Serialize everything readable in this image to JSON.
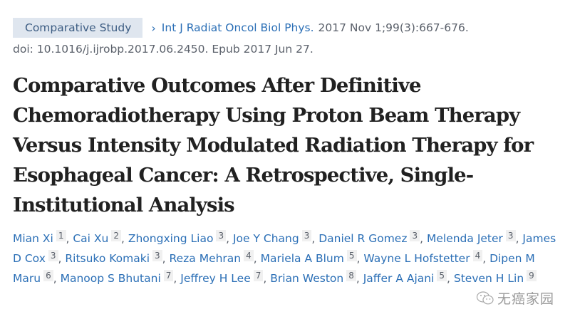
{
  "citation": {
    "publication_type": "Comparative Study",
    "journal": "Int J Radiat Oncol Biol Phys.",
    "details": "2017 Nov 1;99(3):667-676.",
    "doi_line": "doi: 10.1016/j.ijrobp.2017.06.2450. Epub 2017 Jun 27."
  },
  "title_lines": [
    "Comparative Outcomes After Definitive",
    "Chemoradiotherapy Using Proton Beam Therapy",
    "Versus Intensity Modulated Radiation Therapy for",
    "Esophageal Cancer: A Retrospective, Single-",
    "Institutional Analysis"
  ],
  "authors": [
    {
      "name": "Mian Xi",
      "aff": "1"
    },
    {
      "name": "Cai Xu",
      "aff": "2"
    },
    {
      "name": "Zhongxing Liao",
      "aff": "3"
    },
    {
      "name": "Joe Y Chang",
      "aff": "3"
    },
    {
      "name": "Daniel R Gomez",
      "aff": "3"
    },
    {
      "name": "Melenda Jeter",
      "aff": "3"
    },
    {
      "name": "James D Cox",
      "aff": "3"
    },
    {
      "name": "Ritsuko Komaki",
      "aff": "3"
    },
    {
      "name": "Reza Mehran",
      "aff": "4"
    },
    {
      "name": "Mariela A Blum",
      "aff": "5"
    },
    {
      "name": "Wayne L Hofstetter",
      "aff": "4"
    },
    {
      "name": "Dipen M Maru",
      "aff": "6"
    },
    {
      "name": "Manoop S Bhutani",
      "aff": "7"
    },
    {
      "name": "Jeffrey H Lee",
      "aff": "7"
    },
    {
      "name": "Brian Weston",
      "aff": "8"
    },
    {
      "name": "Jaffer A Ajani",
      "aff": "5"
    },
    {
      "name": "Steven H Lin",
      "aff": "9"
    }
  ],
  "separator": ", ",
  "watermark": {
    "icon": "wechat-icon",
    "text": "无癌家园"
  },
  "colors": {
    "link": "#2b6fb6",
    "badge_bg": "#dfe6ef",
    "badge_text": "#3d5d83",
    "meta_text": "#5b616b",
    "title_text": "#212121"
  }
}
